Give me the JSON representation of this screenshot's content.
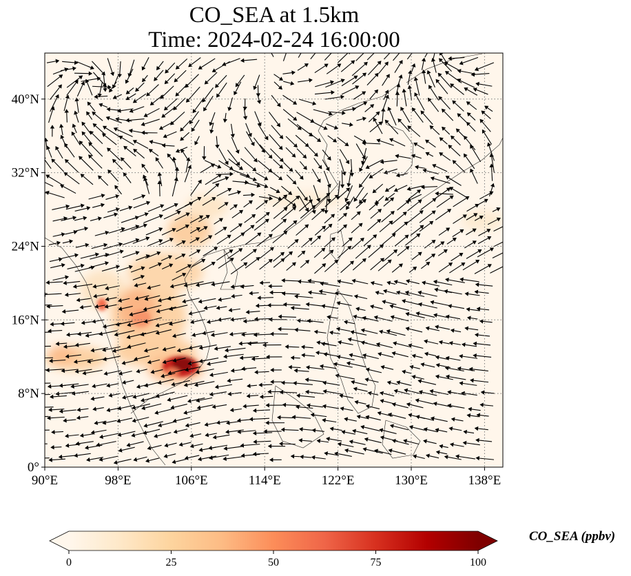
{
  "figure": {
    "title_line1": "CO_SEA at 1.5km",
    "title_line2": "Time: 2024-02-24 16:00:00"
  },
  "map": {
    "lon_range": [
      90,
      140
    ],
    "lat_range": [
      0,
      45
    ],
    "gridlines": "dotted",
    "lon_ticks": [
      90,
      98,
      106,
      114,
      122,
      130,
      138
    ],
    "lat_ticks": [
      0,
      8,
      16,
      24,
      32,
      40
    ],
    "lon_tick_labels": [
      "90°E",
      "98°E",
      "106°E",
      "114°E",
      "122°E",
      "130°E",
      "138°E"
    ],
    "lat_tick_labels": [
      "0°",
      "8°N",
      "16°N",
      "24°N",
      "32°N",
      "40°N"
    ],
    "field": "CO_SEA",
    "vectors": "wind arrows"
  },
  "colorbar": {
    "label": "CO_SEA (ppbv)",
    "colormap": "OrRd",
    "range": [
      0,
      100
    ],
    "ticks": [
      0,
      25,
      50,
      75,
      100
    ],
    "tick_labels": [
      "0",
      "25",
      "50",
      "75",
      "100"
    ],
    "colors": [
      "#fff7ec",
      "#fee8c8",
      "#fdd49e",
      "#fdbb84",
      "#fc8d59",
      "#ef6548",
      "#d7301f",
      "#b30000",
      "#7f0000"
    ]
  }
}
